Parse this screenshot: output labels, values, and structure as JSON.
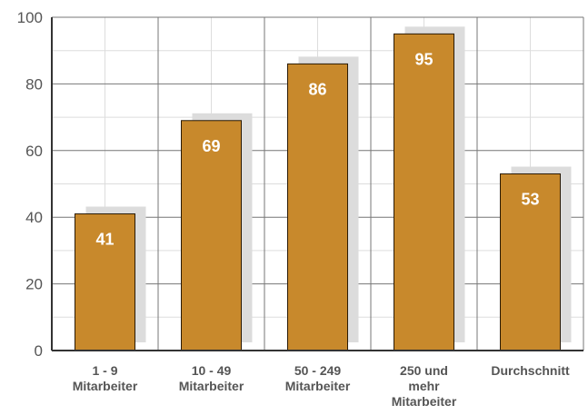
{
  "chart_data": {
    "type": "bar",
    "categories": [
      [
        "1 - 9",
        "Mitarbeiter"
      ],
      [
        "10 - 49",
        "Mitarbeiter"
      ],
      [
        "50 - 249",
        "Mitarbeiter"
      ],
      [
        "250 und",
        "mehr",
        "Mitarbeiter"
      ],
      [
        "Durchschnitt"
      ]
    ],
    "values": [
      41,
      69,
      86,
      95,
      53
    ],
    "data_labels": [
      "41",
      "69",
      "86",
      "95",
      "53"
    ],
    "yticks": [
      "0",
      "20",
      "40",
      "60",
      "80",
      "100"
    ],
    "ylim": [
      0,
      100
    ],
    "grid": true,
    "colors": {
      "bar": "#C8892C",
      "bar_stroke": "#2a1a05",
      "shadow": "#DCDCDC",
      "grid_major": "#777777",
      "grid_minor": "#dddddd",
      "axis": "#333333"
    }
  }
}
